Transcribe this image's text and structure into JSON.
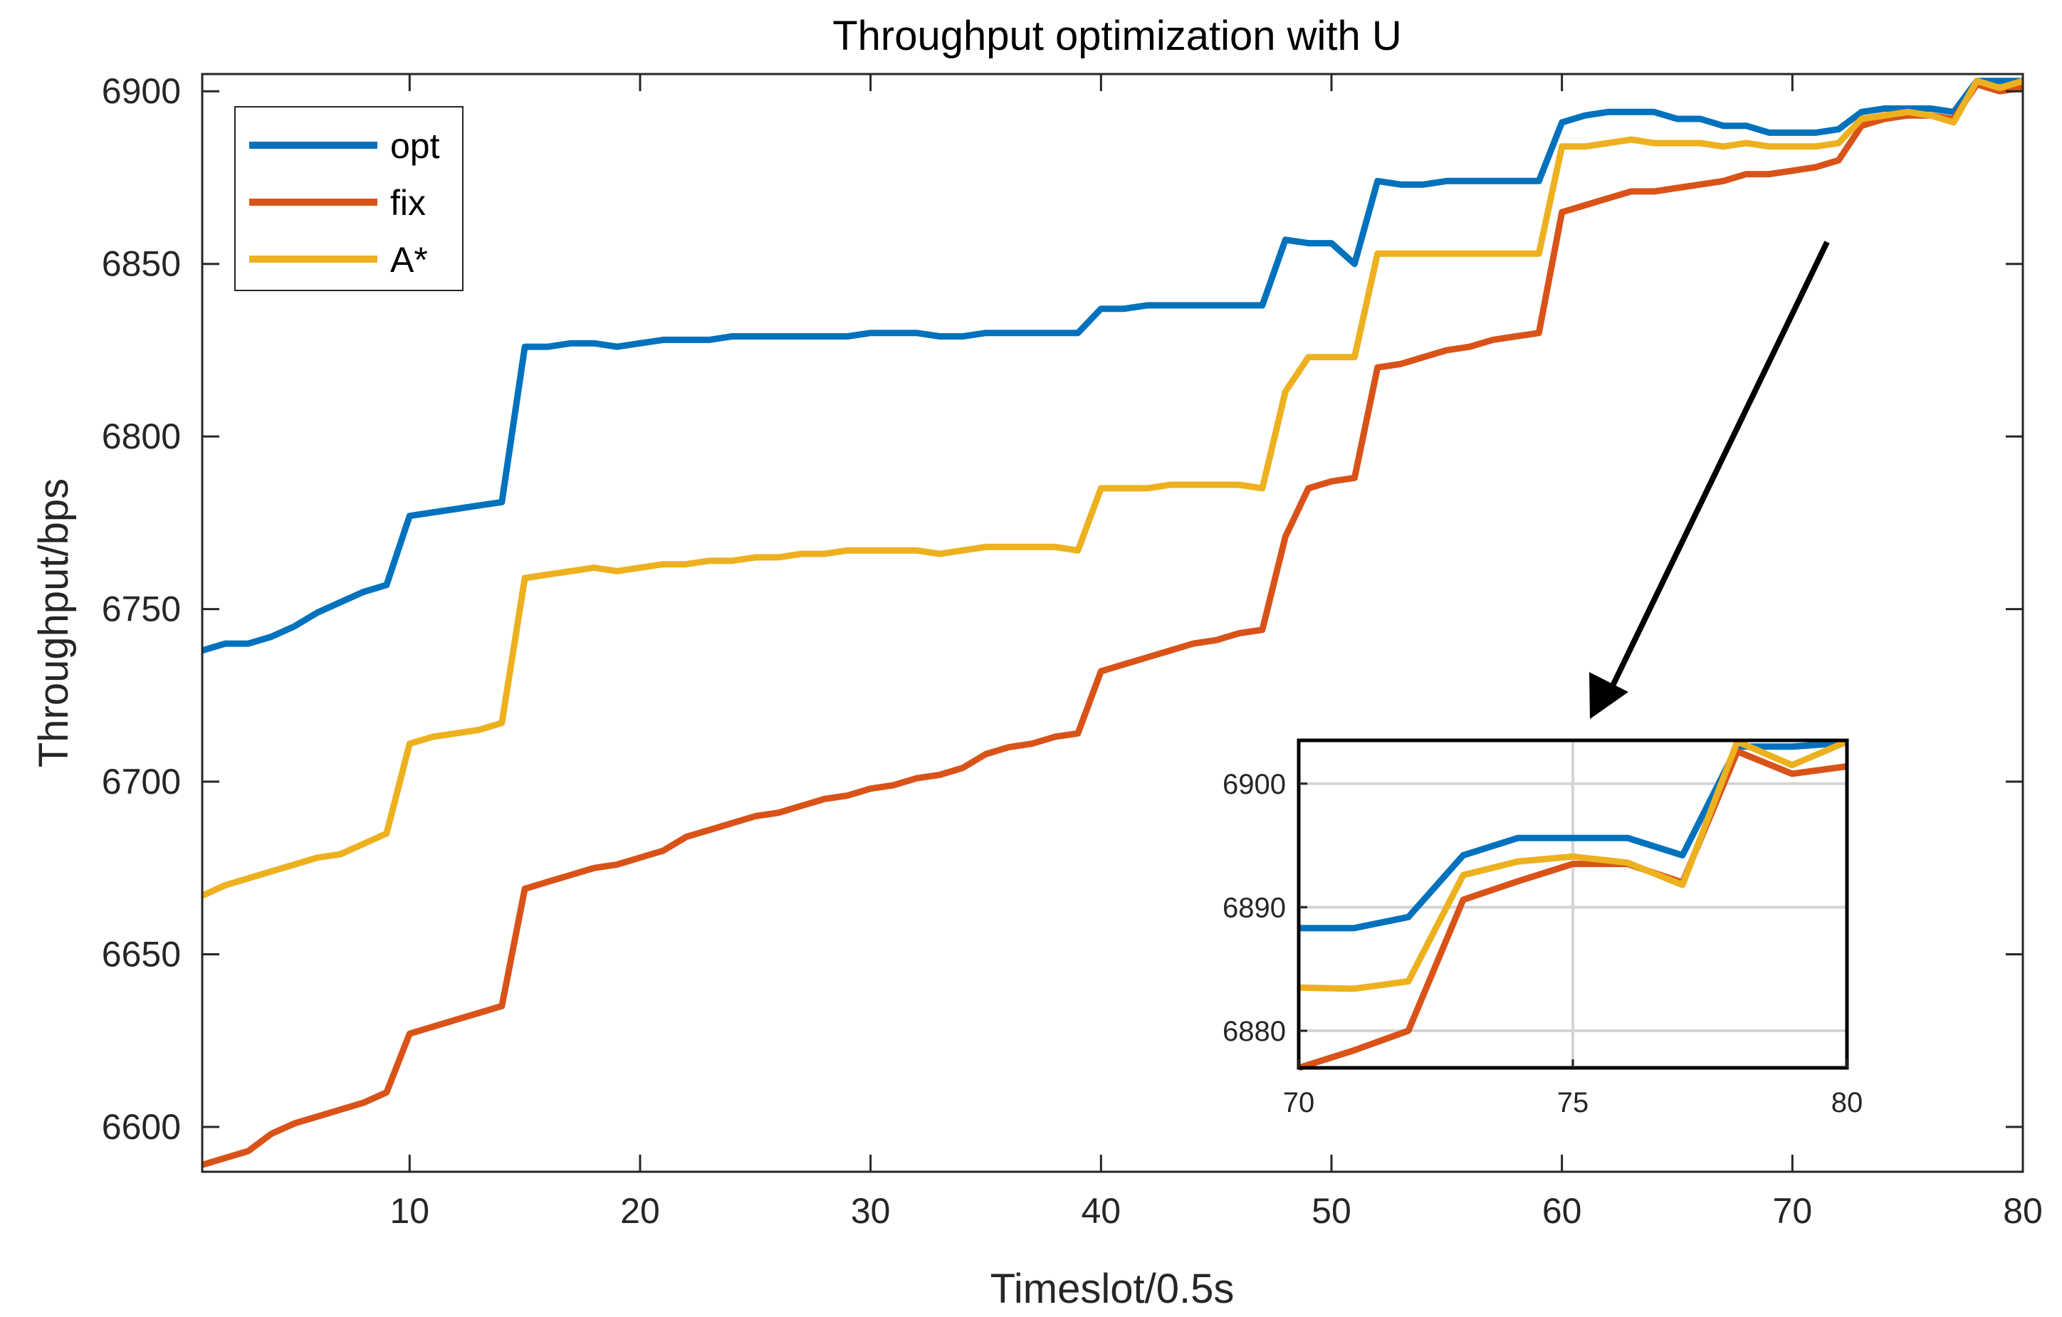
{
  "chart_data": [
    {
      "type": "line",
      "title": "Throughput optimization with U",
      "xlabel": "Timeslot/0.5s",
      "ylabel": "Throughput/bps",
      "xlim": [
        1,
        80
      ],
      "ylim": [
        6587,
        6905
      ],
      "xticks": [
        "10",
        "20",
        "30",
        "40",
        "50",
        "60",
        "70",
        "80"
      ],
      "yticks": [
        "6600",
        "6650",
        "6700",
        "6750",
        "6800",
        "6850",
        "6900"
      ],
      "grid": false,
      "legend_position": "top-left",
      "x": [
        1,
        2,
        3,
        4,
        5,
        6,
        7,
        8,
        9,
        10,
        11,
        12,
        13,
        14,
        15,
        16,
        17,
        18,
        19,
        20,
        21,
        22,
        23,
        24,
        25,
        26,
        27,
        28,
        29,
        30,
        31,
        32,
        33,
        34,
        35,
        36,
        37,
        38,
        39,
        40,
        41,
        42,
        43,
        44,
        45,
        46,
        47,
        48,
        49,
        50,
        51,
        52,
        53,
        54,
        55,
        56,
        57,
        58,
        59,
        60,
        61,
        62,
        63,
        64,
        65,
        66,
        67,
        68,
        69,
        70,
        71,
        72,
        73,
        74,
        75,
        76,
        77,
        78,
        79,
        80
      ],
      "series": [
        {
          "name": "opt",
          "color": "#0072BD",
          "values": [
            6738,
            6740,
            6740,
            6742,
            6745,
            6749,
            6752,
            6755,
            6757,
            6777,
            6778,
            6779,
            6780,
            6781,
            6826,
            6826,
            6827,
            6827,
            6826,
            6827,
            6828,
            6828,
            6828,
            6829,
            6829,
            6829,
            6829,
            6829,
            6829,
            6830,
            6830,
            6830,
            6829,
            6829,
            6830,
            6830,
            6830,
            6830,
            6830,
            6837,
            6837,
            6838,
            6838,
            6838,
            6838,
            6838,
            6838,
            6857,
            6856,
            6856,
            6850,
            6874,
            6873,
            6873,
            6874,
            6874,
            6874,
            6874,
            6874,
            6891,
            6893,
            6894,
            6894,
            6894,
            6892,
            6892,
            6890,
            6890,
            6888,
            6888,
            6888,
            6889,
            6894,
            6895,
            6895,
            6895,
            6894,
            6903,
            6903,
            6903
          ]
        },
        {
          "name": "fix",
          "color": "#D95319",
          "values": [
            6589,
            6591,
            6593,
            6598,
            6601,
            6603,
            6605,
            6607,
            6610,
            6627,
            6629,
            6631,
            6633,
            6635,
            6669,
            6671,
            6673,
            6675,
            6676,
            6678,
            6680,
            6684,
            6686,
            6688,
            6690,
            6691,
            6693,
            6695,
            6696,
            6698,
            6699,
            6701,
            6702,
            6704,
            6708,
            6710,
            6711,
            6713,
            6714,
            6732,
            6734,
            6736,
            6738,
            6740,
            6741,
            6743,
            6744,
            6771,
            6785,
            6787,
            6788,
            6820,
            6821,
            6823,
            6825,
            6826,
            6828,
            6829,
            6830,
            6865,
            6867,
            6869,
            6871,
            6871,
            6872,
            6873,
            6874,
            6876,
            6876,
            6877,
            6878,
            6880,
            6890,
            6892,
            6893,
            6893,
            6892,
            6902,
            6900,
            6901
          ]
        },
        {
          "name": "A*",
          "color": "#EDB120",
          "values": [
            6667,
            6670,
            6672,
            6674,
            6676,
            6678,
            6679,
            6682,
            6685,
            6711,
            6713,
            6714,
            6715,
            6717,
            6759,
            6760,
            6761,
            6762,
            6761,
            6762,
            6763,
            6763,
            6764,
            6764,
            6765,
            6765,
            6766,
            6766,
            6767,
            6767,
            6767,
            6767,
            6766,
            6767,
            6768,
            6768,
            6768,
            6768,
            6767,
            6785,
            6785,
            6785,
            6786,
            6786,
            6786,
            6786,
            6785,
            6813,
            6823,
            6823,
            6823,
            6853,
            6853,
            6853,
            6853,
            6853,
            6853,
            6853,
            6853,
            6884,
            6884,
            6885,
            6886,
            6885,
            6885,
            6885,
            6884,
            6885,
            6884,
            6884,
            6884,
            6885,
            6892,
            6893,
            6894,
            6893,
            6891,
            6903,
            6901,
            6903
          ]
        }
      ],
      "annotations": [
        "arrow pointing to zoomed inset of timeslots 70-80"
      ]
    },
    {
      "type": "line",
      "title": "",
      "xlabel": "",
      "ylabel": "",
      "xlim": [
        70,
        80
      ],
      "ylim": [
        6877,
        6903.5
      ],
      "xticks": [
        "70",
        "75",
        "80"
      ],
      "yticks": [
        "6880",
        "6890",
        "6900"
      ],
      "grid": true,
      "x": [
        70,
        71,
        72,
        73,
        74,
        75,
        76,
        77,
        78,
        79,
        80
      ],
      "series": [
        {
          "name": "opt",
          "color": "#0072BD",
          "values": [
            6888.3,
            6888.3,
            6889.2,
            6894.2,
            6895.6,
            6895.6,
            6895.6,
            6894.2,
            6903.0,
            6903.0,
            6903.3
          ]
        },
        {
          "name": "fix",
          "color": "#D95319",
          "values": [
            6877.0,
            6878.4,
            6880.0,
            6890.6,
            6892.1,
            6893.5,
            6893.5,
            6892.0,
            6902.6,
            6900.8,
            6901.4
          ]
        },
        {
          "name": "A*",
          "color": "#EDB120",
          "values": [
            6883.5,
            6883.4,
            6884.0,
            6892.6,
            6893.7,
            6894.1,
            6893.6,
            6891.8,
            6903.4,
            6901.5,
            6903.4
          ]
        }
      ]
    }
  ]
}
